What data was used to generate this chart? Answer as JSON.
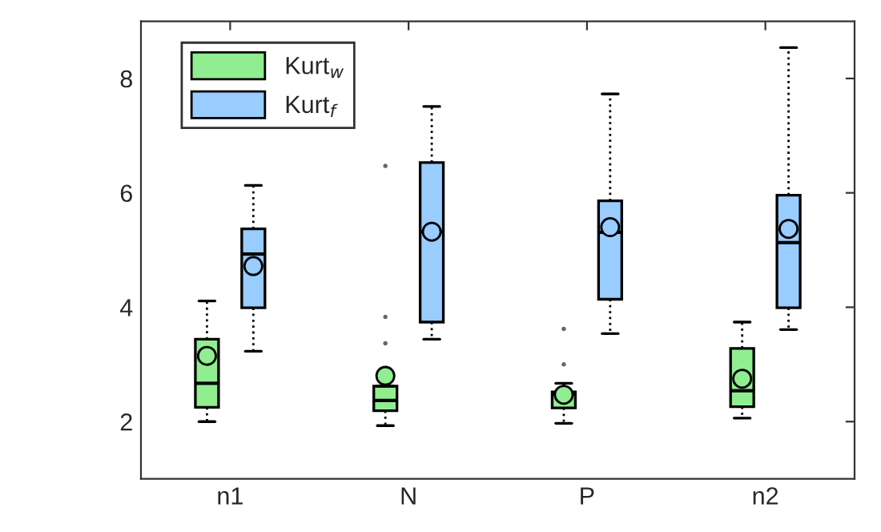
{
  "chart_data": {
    "type": "box",
    "categories": [
      "n1",
      "N",
      "P",
      "n2"
    ],
    "ylim": [
      1,
      9
    ],
    "yticks": [
      2,
      4,
      6,
      8
    ],
    "grid": false,
    "legend": "top left",
    "series": [
      {
        "name": "Kurt$_{w}$",
        "color": "#90ee90",
        "boxes": [
          {
            "low": 2.0,
            "q1": 2.25,
            "median": 2.67,
            "q3": 3.44,
            "high": 4.11,
            "mean": 3.15
          },
          {
            "low": 1.93,
            "q1": 2.19,
            "median": 2.37,
            "q3": 2.62,
            "high": 2.62,
            "mean": 2.8,
            "outliers": [
              3.37,
              3.83,
              6.47
            ]
          },
          {
            "low": 1.97,
            "q1": 2.24,
            "median": 2.48,
            "q3": 2.52,
            "high": 2.67,
            "mean": 2.47,
            "outliers": [
              3.0,
              3.62
            ]
          },
          {
            "low": 2.06,
            "q1": 2.26,
            "median": 2.54,
            "q3": 3.28,
            "high": 3.74,
            "mean": 2.75
          }
        ]
      },
      {
        "name": "Kurt$_{f}$",
        "color": "#99ccff",
        "boxes": [
          {
            "low": 3.23,
            "q1": 3.99,
            "median": 4.93,
            "q3": 5.37,
            "high": 6.13,
            "mean": 4.72
          },
          {
            "low": 3.44,
            "q1": 3.74,
            "median": 5.32,
            "q3": 6.53,
            "high": 7.51,
            "mean": 5.32
          },
          {
            "low": 3.54,
            "q1": 4.14,
            "median": 5.31,
            "q3": 5.86,
            "high": 7.73,
            "mean": 5.4
          },
          {
            "low": 3.61,
            "q1": 3.99,
            "median": 5.13,
            "q3": 5.96,
            "high": 8.54,
            "mean": 5.37
          }
        ]
      }
    ]
  }
}
